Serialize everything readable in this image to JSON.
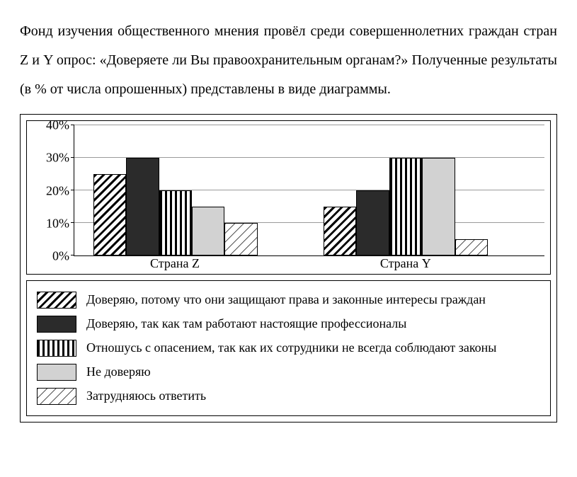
{
  "intro_text": "Фонд изучения общественного мнения провёл среди совершеннолетних граждан стран Z и Y опрос: «Доверяете ли Вы правоохранительным органам?» Полученные результаты (в % от числа опрошенных) представлены в виде диаграммы.",
  "chart": {
    "type": "bar",
    "ylim": [
      0,
      40
    ],
    "ytick_step": 10,
    "yticks": [
      "0%",
      "10%",
      "20%",
      "30%",
      "40%"
    ],
    "gridline_color": "#9a9a9a",
    "background_color": "#ffffff",
    "bar_width_pct": 7.0,
    "group_gap_pct": 9.0,
    "group_start_pct": [
      4.0,
      53.0
    ],
    "groups": [
      {
        "label": "Страна Z",
        "values": [
          25,
          30,
          20,
          15,
          10
        ]
      },
      {
        "label": "Страна Y",
        "values": [
          15,
          20,
          30,
          30,
          5
        ]
      }
    ],
    "series": [
      {
        "key": "trust_rights",
        "pattern": "diag"
      },
      {
        "key": "trust_pro",
        "pattern": "solid"
      },
      {
        "key": "suspicious",
        "pattern": "vstripe"
      },
      {
        "key": "distrust",
        "pattern": "gray"
      },
      {
        "key": "dunno",
        "pattern": "sparse"
      }
    ],
    "patterns": {
      "diag": {
        "background": "repeating-linear-gradient(135deg,#000 0 3px,#fff 3px 8px)"
      },
      "solid": {
        "background": "#2b2b2b"
      },
      "vstripe": {
        "background": "repeating-linear-gradient(90deg,#000 0 3px,#fff 3px 7px)"
      },
      "gray": {
        "background": "#d2d2d2"
      },
      "sparse": {
        "background": "repeating-linear-gradient(135deg,#555 0 1px,transparent 1px 9px),#fff"
      }
    }
  },
  "legend": [
    {
      "pattern": "diag",
      "text": "Доверяю, потому что они защищают права и законные интересы граждан"
    },
    {
      "pattern": "solid",
      "text": "Доверяю, так как там работают настоящие профессионалы"
    },
    {
      "pattern": "vstripe",
      "text": "Отношусь с опасением, так как их сотрудники не всегда соблюдают законы"
    },
    {
      "pattern": "gray",
      "text": "Не доверяю"
    },
    {
      "pattern": "sparse",
      "text": "Затрудняюсь ответить"
    }
  ]
}
